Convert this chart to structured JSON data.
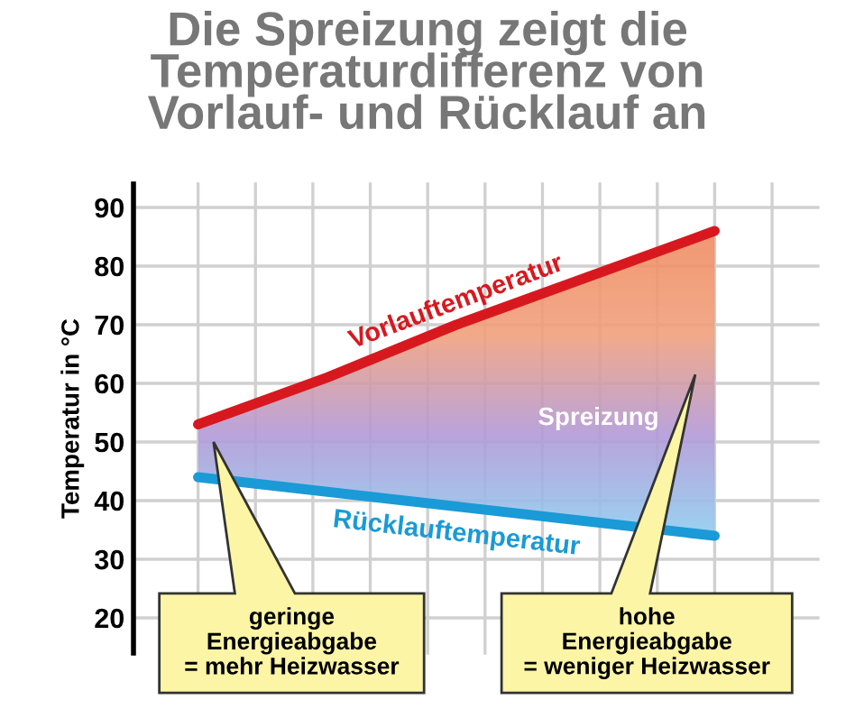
{
  "chart_data": {
    "type": "line",
    "title": "Die Spreizung zeigt die\nTemperaturdifferenz von\nVorlauf- und Rücklauf an",
    "ylabel": "Temperatur in °C",
    "categories": [
      null,
      null,
      null,
      null,
      null
    ],
    "series": [
      {
        "name": "Vorlauftemperatur",
        "color": "#d7191f",
        "values": [
          53,
          61,
          70,
          78,
          86
        ]
      },
      {
        "name": "Rücklauftemperatur",
        "color": "#1a9ad6",
        "values": [
          44,
          41.5,
          39,
          36.5,
          34
        ]
      }
    ],
    "ylim": [
      14,
      94
    ],
    "yticks": [
      20,
      30,
      40,
      50,
      60,
      70,
      80,
      90
    ],
    "grid": true,
    "legend": false,
    "annotations": [
      "Spreizung",
      "geringe\nEnergieabgabe\n= mehr Heizwasser",
      "hohe\nEnergieabgabe\n= weniger Heizwasser"
    ]
  }
}
